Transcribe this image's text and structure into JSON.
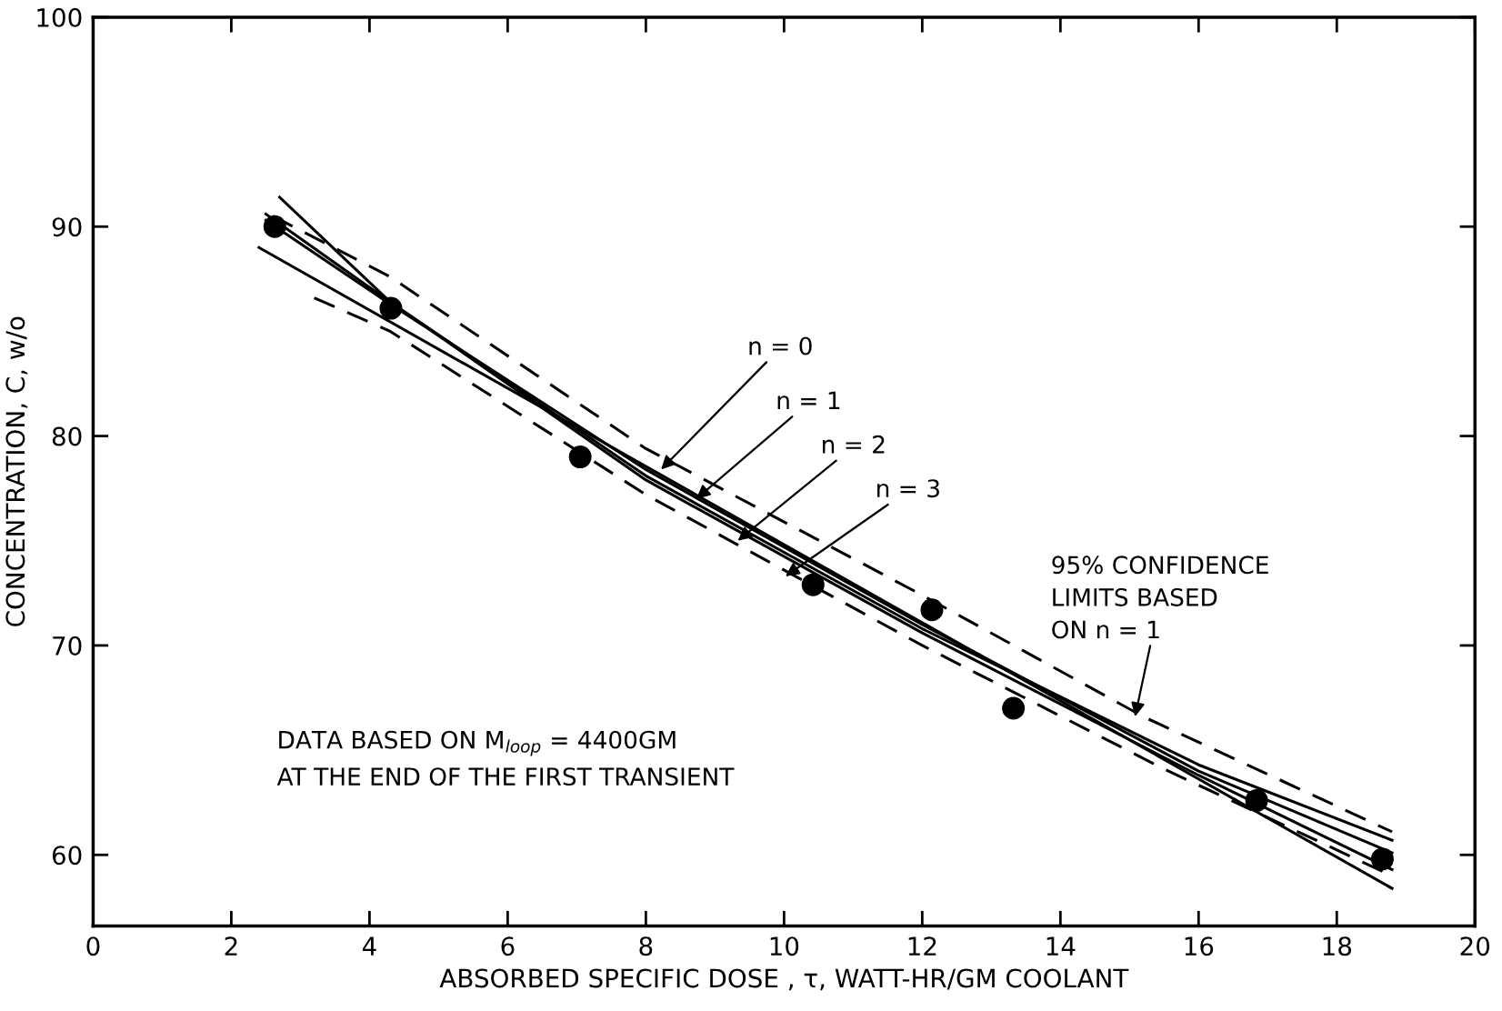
{
  "chart_data": {
    "type": "line",
    "xlabel": "ABSORBED SPECIFIC DOSE , τ, WATT-HR/GM COOLANT",
    "ylabel": "CONCENTRATION, C, w/o",
    "xlim": [
      0,
      20
    ],
    "xticks": [
      0,
      2,
      4,
      6,
      8,
      10,
      12,
      14,
      16,
      18,
      20
    ],
    "ylim": [
      56.6,
      100
    ],
    "yticks": [
      60,
      70,
      80,
      90,
      100
    ],
    "grid": false,
    "legend": false,
    "series": [
      {
        "type": "scatter",
        "marker": "circle",
        "color": "#000000",
        "x": [
          2.63,
          4.31,
          7.05,
          10.42,
          12.14,
          13.32,
          16.84,
          18.66
        ],
        "values": [
          90.0,
          86.1,
          79.0,
          72.9,
          71.7,
          67.0,
          62.6,
          59.8
        ]
      },
      {
        "line_style": "solid",
        "color": "#000000",
        "x": [
          2.4,
          18.8
        ],
        "values": [
          89.0,
          58.4
        ]
      },
      {
        "line_style": "solid",
        "color": "#000000",
        "x": [
          2.5,
          4.3,
          8,
          12,
          16,
          18.8
        ],
        "values": [
          90.3,
          86.3,
          78.4,
          71.0,
          64.0,
          60.1
        ]
      },
      {
        "line_style": "solid",
        "color": "#000000",
        "x": [
          2.5,
          4.3,
          8,
          12,
          16,
          18.8
        ],
        "values": [
          90.6,
          86.4,
          78.1,
          70.8,
          64.3,
          60.7
        ]
      },
      {
        "line_style": "solid",
        "color": "#000000",
        "x": [
          2.7,
          4.3,
          8,
          12,
          16,
          18.8
        ],
        "values": [
          91.4,
          86.4,
          77.9,
          70.6,
          63.8,
          59.3
        ]
      },
      {
        "line_style": "dashed",
        "color": "#000000",
        "x": [
          2.6,
          4.3,
          8,
          12,
          15.2,
          18.8
        ],
        "values": [
          90.5,
          87.6,
          79.4,
          72.4,
          66.6,
          61.1
        ]
      },
      {
        "line_style": "dashed",
        "color": "#000000",
        "x": [
          3.2,
          4.3,
          8,
          12,
          15.5,
          18.8
        ],
        "values": [
          86.6,
          85.0,
          77.2,
          70.0,
          64.1,
          59.0
        ]
      }
    ],
    "annotations": [
      {
        "text": "n = 0",
        "x": 8.22,
        "y": 78.4
      },
      {
        "text": "n = 1",
        "x": 8.73,
        "y": 77.0
      },
      {
        "text": "n = 2",
        "x": 9.33,
        "y": 75.0
      },
      {
        "text": "n = 3",
        "x": 10.02,
        "y": 73.3
      },
      {
        "text": "95% CONFIDENCE\nLIMITS BASED\nON n = 1",
        "x": 15.08,
        "y": 66.6
      },
      "DATA BASED ON M$_{loop}$ = 4400GM\nAT THE END OF THE FIRST TRANSIENT"
    ]
  }
}
